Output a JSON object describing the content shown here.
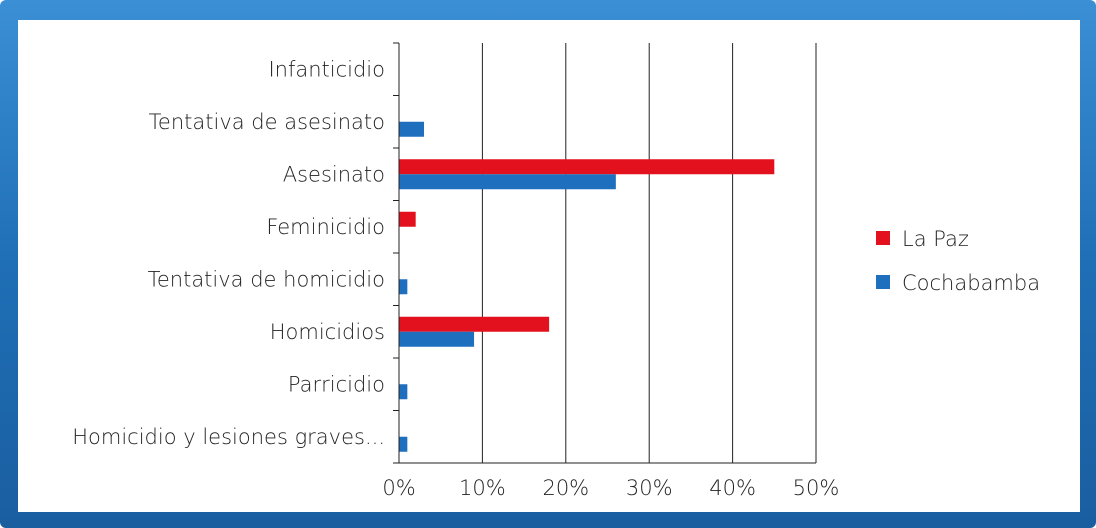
{
  "chart_data": {
    "type": "bar",
    "orientation": "horizontal",
    "categories": [
      "Infanticidio",
      "Tentativa de asesinato",
      "Asesinato",
      "Feminicidio",
      "Tentativa de homicidio",
      "Homicidios",
      "Parricidio",
      "Homicidio y lesiones graves..."
    ],
    "series": [
      {
        "name": "La Paz",
        "color": "#e3101e",
        "values": [
          0,
          0,
          45,
          2,
          0,
          18,
          0,
          0
        ]
      },
      {
        "name": "Cochabamba",
        "color": "#1f6fbf",
        "values": [
          0,
          3,
          26,
          0,
          1,
          9,
          1,
          1
        ]
      }
    ],
    "xlim": [
      0,
      50
    ],
    "ticks": [
      "0%",
      "10%",
      "20%",
      "30%",
      "40%",
      "50%"
    ],
    "grid": true,
    "legend": "right"
  }
}
